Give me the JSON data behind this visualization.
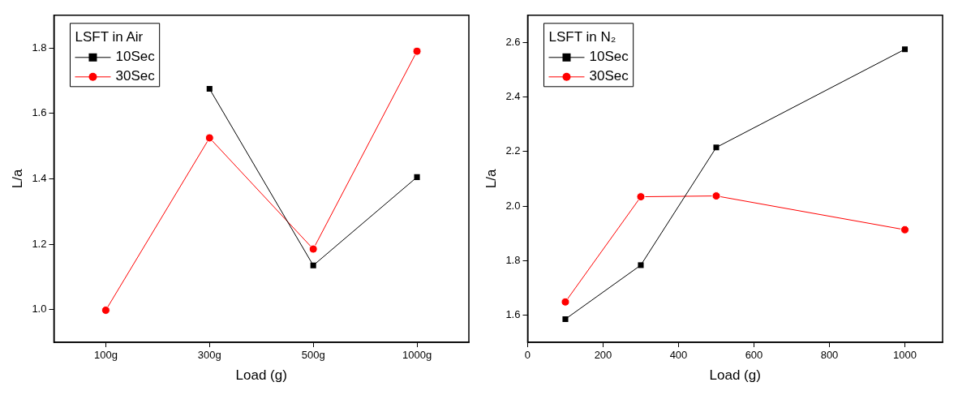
{
  "chart_data": [
    {
      "type": "line",
      "legend_title": "LSFT in Air",
      "xlabel": "Load (g)",
      "ylabel": "L/a",
      "categories": [
        "100g",
        "300g",
        "500g",
        "1000g"
      ],
      "ylim": [
        0.9,
        1.9
      ],
      "yticks": [
        {
          "value": 1,
          "label": "1.0"
        },
        1.2,
        1.4,
        1.6,
        1.8
      ],
      "grid": false,
      "legend": "top left",
      "series": [
        {
          "name": "10Sec",
          "color": "#000000",
          "marker": "square",
          "values": [
            null,
            1.675,
            1.135,
            1.405
          ]
        },
        {
          "name": "30Sec",
          "color": "#ff0000",
          "marker": "circle",
          "values": [
            0.998,
            1.525,
            1.185,
            1.79
          ]
        }
      ]
    },
    {
      "type": "line",
      "legend_title": "LSFT in N₂",
      "xlabel": "Load (g)",
      "ylabel": "L/a",
      "x": [
        100,
        300,
        500,
        1000
      ],
      "xlim": [
        0,
        1100
      ],
      "xticks": [
        0,
        200,
        400,
        600,
        800,
        1000
      ],
      "ylim": [
        1.5,
        2.7
      ],
      "yticks": [
        1.6,
        1.8,
        {
          "value": 2,
          "label": "2.0"
        },
        2.2,
        2.4,
        2.6
      ],
      "grid": false,
      "legend": "top left",
      "series": [
        {
          "name": "10Sec",
          "color": "#000000",
          "marker": "square",
          "values": [
            1.585,
            1.783,
            2.215,
            2.575
          ]
        },
        {
          "name": "30Sec",
          "color": "#ff0000",
          "marker": "circle",
          "values": [
            1.648,
            2.034,
            2.037,
            1.913
          ]
        }
      ]
    }
  ]
}
